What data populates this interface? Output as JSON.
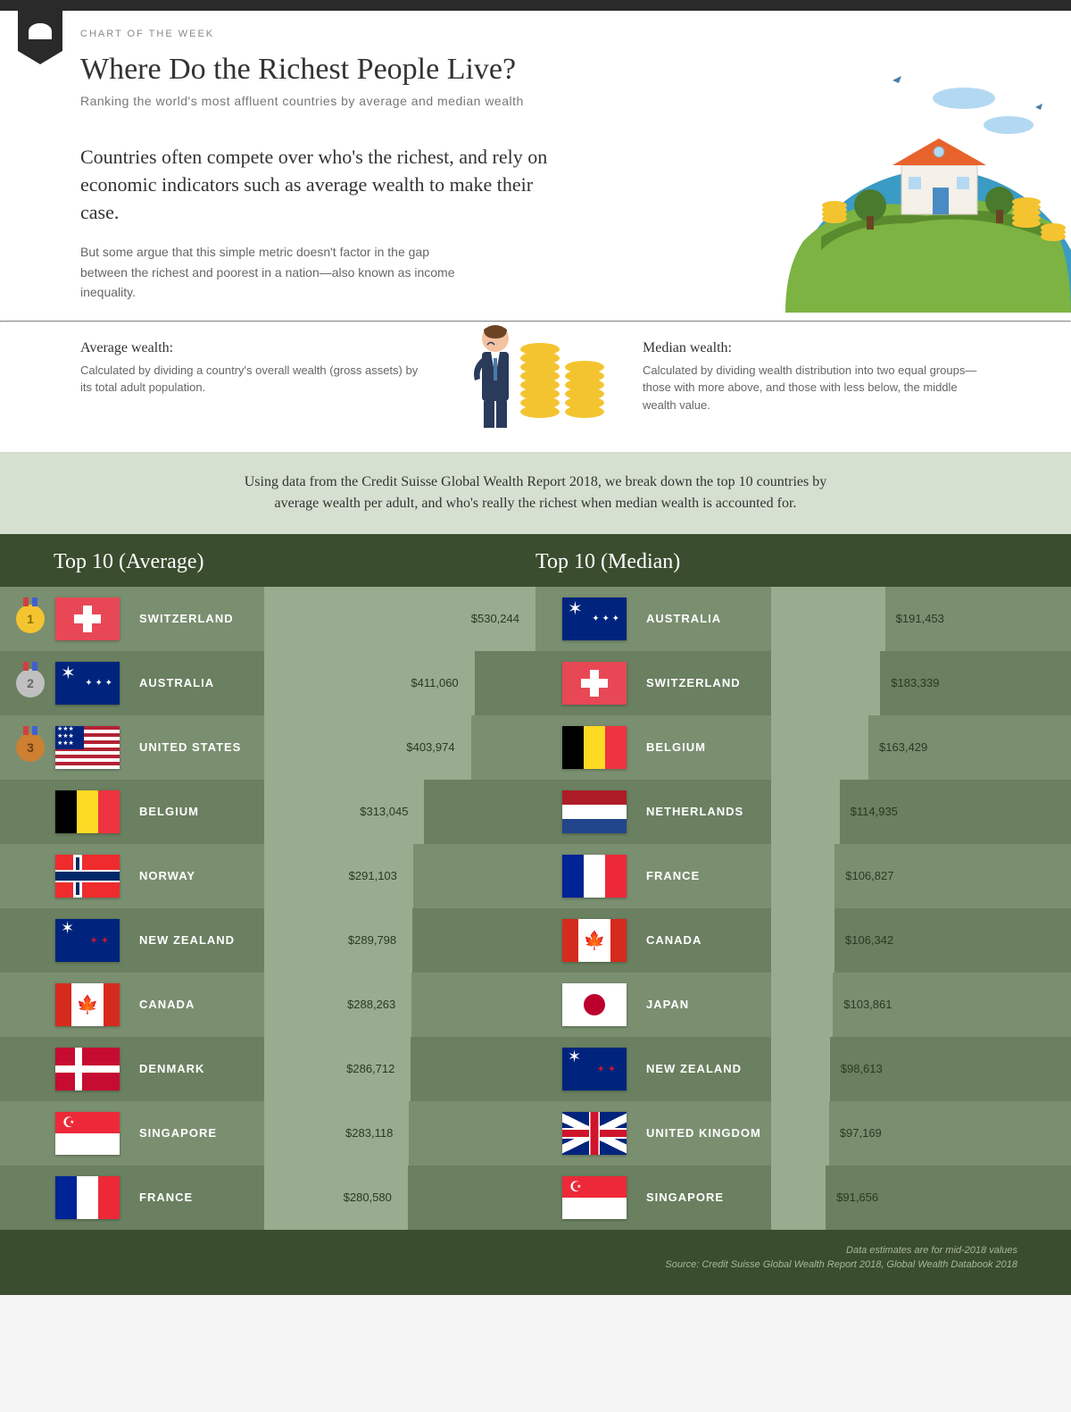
{
  "header": {
    "eyebrow": "CHART OF THE WEEK",
    "title": "Where Do the Richest People Live?",
    "subtitle": "Ranking the world's most affluent countries by average and median wealth"
  },
  "intro": {
    "lead": "Countries often compete over who's the richest, and rely on economic indicators such as average wealth to make their case.",
    "body": "But some argue that this simple metric doesn't factor in the gap between the richest and poorest in a nation—also known as income inequality."
  },
  "defs": {
    "avg_title": "Average wealth:",
    "avg_text": "Calculated by dividing a country's overall wealth (gross assets) by its total adult population.",
    "med_title": "Median wealth:",
    "med_text": "Calculated by dividing wealth distribution into two equal groups—those with more above, and those with less below, the middle wealth value."
  },
  "description": "Using data from the Credit Suisse Global Wealth Report 2018, we break down the top 10 countries by average wealth per adult, and who's really the richest when median wealth is accounted for.",
  "rankings": {
    "avg_title": "Top 10 (Average)",
    "med_title": "Top 10 (Median)",
    "max_avg": 530244,
    "max_med": 191453,
    "avg": [
      {
        "country": "SWITZERLAND",
        "value": 530244,
        "label": "$530,244",
        "flag": "swiss"
      },
      {
        "country": "AUSTRALIA",
        "value": 411060,
        "label": "$411,060",
        "flag": "aus"
      },
      {
        "country": "UNITED STATES",
        "value": 403974,
        "label": "$403,974",
        "flag": "usa"
      },
      {
        "country": "BELGIUM",
        "value": 313045,
        "label": "$313,045",
        "flag": "bel"
      },
      {
        "country": "NORWAY",
        "value": 291103,
        "label": "$291,103",
        "flag": "nor"
      },
      {
        "country": "NEW ZEALAND",
        "value": 289798,
        "label": "$289,798",
        "flag": "nz"
      },
      {
        "country": "CANADA",
        "value": 288263,
        "label": "$288,263",
        "flag": "can"
      },
      {
        "country": "DENMARK",
        "value": 286712,
        "label": "$286,712",
        "flag": "den"
      },
      {
        "country": "SINGAPORE",
        "value": 283118,
        "label": "$283,118",
        "flag": "sin"
      },
      {
        "country": "FRANCE",
        "value": 280580,
        "label": "$280,580",
        "flag": "fra"
      }
    ],
    "med": [
      {
        "country": "AUSTRALIA",
        "value": 191453,
        "label": "$191,453",
        "flag": "aus"
      },
      {
        "country": "SWITZERLAND",
        "value": 183339,
        "label": "$183,339",
        "flag": "swiss"
      },
      {
        "country": "BELGIUM",
        "value": 163429,
        "label": "$163,429",
        "flag": "bel"
      },
      {
        "country": "NETHERLANDS",
        "value": 114935,
        "label": "$114,935",
        "flag": "ned"
      },
      {
        "country": "FRANCE",
        "value": 106827,
        "label": "$106,827",
        "flag": "fra"
      },
      {
        "country": "CANADA",
        "value": 106342,
        "label": "$106,342",
        "flag": "can"
      },
      {
        "country": "JAPAN",
        "value": 103861,
        "label": "$103,861",
        "flag": "jap"
      },
      {
        "country": "NEW ZEALAND",
        "value": 98613,
        "label": "$98,613",
        "flag": "nz"
      },
      {
        "country": "UNITED KINGDOM",
        "value": 97169,
        "label": "$97,169",
        "flag": "uk"
      },
      {
        "country": "SINGAPORE",
        "value": 91656,
        "label": "$91,656",
        "flag": "sin"
      }
    ]
  },
  "footer": {
    "note": "Data estimates are for mid-2018 values",
    "source": "Source: Credit Suisse Global Wealth Report 2018, Global Wealth Databook 2018"
  },
  "colors": {
    "dark_green": "#3a4d2e",
    "row_even": "#6a8060",
    "row_odd": "#7a8f70",
    "bar": "#98ac8f",
    "band": "#d5e0d0"
  }
}
